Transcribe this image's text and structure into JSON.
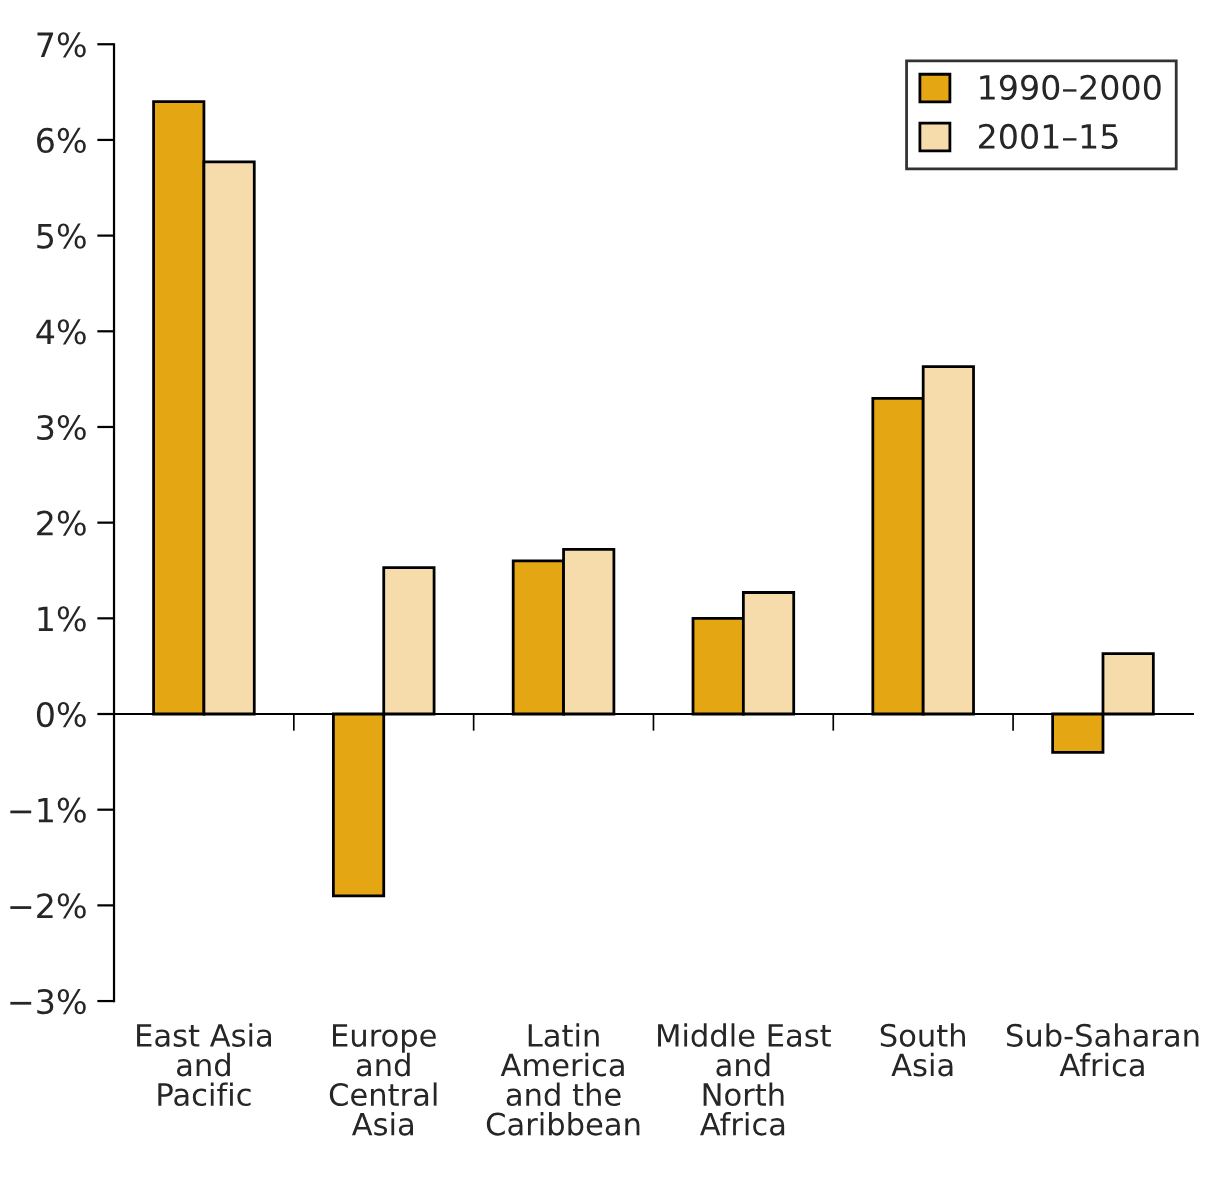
{
  "chart_data": {
    "type": "bar",
    "categories": [
      "East Asia\nand\nPacific",
      "Europe\nand\nCentral\nAsia",
      "Latin\nAmerica\nand the\nCaribbean",
      "Middle East\nand\nNorth\nAfrica",
      "South\nAsia",
      "Sub-Saharan\nAfrica"
    ],
    "series": [
      {
        "name": "1990–2000",
        "color": "#e5a614",
        "values": [
          6.4,
          -1.9,
          1.6,
          1.0,
          3.3,
          -0.4
        ]
      },
      {
        "name": "2001–15",
        "color": "#f6dbab",
        "values": [
          5.77,
          1.53,
          1.72,
          1.27,
          3.63,
          0.63
        ]
      }
    ],
    "ylim": [
      -3,
      7
    ],
    "yticks": [
      {
        "value": -3,
        "label": "−3%"
      },
      {
        "value": -2,
        "label": "−2%"
      },
      {
        "value": -1,
        "label": "−1%"
      },
      {
        "value": 0,
        "label": "0%"
      },
      {
        "value": 1,
        "label": "1%"
      },
      {
        "value": 2,
        "label": "2%"
      },
      {
        "value": 3,
        "label": "3%"
      },
      {
        "value": 4,
        "label": "4%"
      },
      {
        "value": 5,
        "label": "5%"
      },
      {
        "value": 6,
        "label": "6%"
      },
      {
        "value": 7,
        "label": "7%"
      }
    ],
    "legend": "top right"
  }
}
